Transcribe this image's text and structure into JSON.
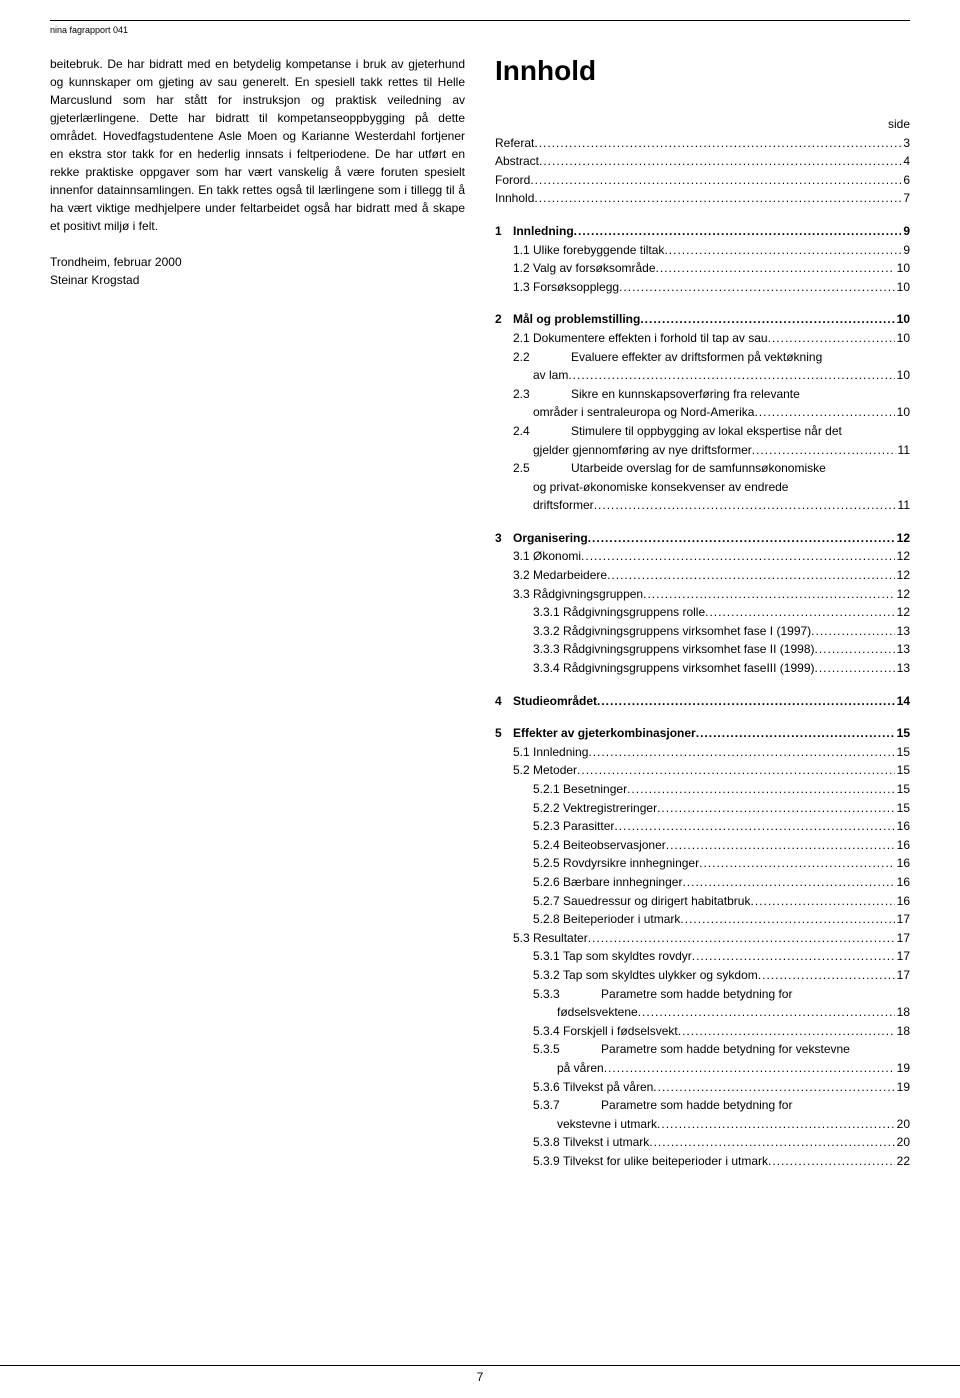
{
  "header": {
    "label": "nina fagrapport 041"
  },
  "left": {
    "paragraph": "beitebruk. De har bidratt med en betydelig kompetanse i bruk av gjeterhund og kunnskaper om gjeting av sau generelt. En spesiell takk rettes til Helle Marcuslund som har stått for instruksjon og praktisk veiledning av gjeterlærlingene. Dette har bidratt til kompetanseoppbygging på dette området. Hovedfagstudentene Asle Moen og Karianne Westerdahl fortjener en ekstra stor takk for en hederlig innsats i feltperiodene. De har utført en rekke praktiske oppgaver som har vært vanskelig å være foruten spesielt innenfor datainnsamlingen. En takk rettes også til lærlingene som i tillegg til å ha vært viktige medhjelpere under feltarbeidet også har bidratt med å skape et positivt miljø i felt.",
    "sign1": "Trondheim, februar 2000",
    "sign2": "Steinar Krogstad"
  },
  "right": {
    "title": "Innhold",
    "side_label": "side",
    "front": [
      {
        "label": "Referat",
        "page": "3"
      },
      {
        "label": "Abstract",
        "page": "4"
      },
      {
        "label": "Forord",
        "page": "6"
      },
      {
        "label": "Innhold",
        "page": "7"
      }
    ],
    "sections": [
      {
        "num": "1",
        "label": "Innledning",
        "page": "9",
        "bold": true,
        "children": [
          {
            "num": "1.1",
            "label": "Ulike forebyggende tiltak",
            "page": "9"
          },
          {
            "num": "1.2",
            "label": "Valg av forsøksområde",
            "page": "10"
          },
          {
            "num": "1.3",
            "label": "Forsøksopplegg",
            "page": "10"
          }
        ]
      },
      {
        "num": "2",
        "label": "Mål og problemstilling",
        "page": "10",
        "bold": true,
        "children": [
          {
            "num": "2.1",
            "label": "Dokumentere effekten i forhold til tap av sau",
            "page": "10"
          },
          {
            "num": "2.2",
            "label": "Evaluere effekter av driftsformen på vektøkning",
            "cont": "av lam",
            "page": "10"
          },
          {
            "num": "2.3",
            "label": "Sikre en kunnskapsoverføring fra relevante",
            "cont": "områder i sentraleuropa og Nord-Amerika",
            "page": "10"
          },
          {
            "num": "2.4",
            "label": "Stimulere til oppbygging av lokal ekspertise når det",
            "cont": "gjelder gjennomføring av nye driftsformer",
            "page": "11"
          },
          {
            "num": "2.5",
            "label": "Utarbeide overslag for de samfunnsøkonomiske",
            "cont": "og privat-økonomiske konsekvenser av endrede",
            "cont2": "driftsformer",
            "page": "11"
          }
        ]
      },
      {
        "num": "3",
        "label": "Organisering",
        "page": "12",
        "bold": true,
        "children": [
          {
            "num": "3.1",
            "label": "Økonomi",
            "page": "12"
          },
          {
            "num": "3.2",
            "label": "Medarbeidere",
            "page": "12"
          },
          {
            "num": "3.3",
            "label": "Rådgivningsgruppen",
            "page": "12"
          },
          {
            "num": "3.3.1",
            "label": "Rådgivningsgruppens rolle",
            "page": "12",
            "lvl": 3
          },
          {
            "num": "3.3.2",
            "label": "Rådgivningsgruppens virksomhet fase I (1997)",
            "page": "13",
            "lvl": 3
          },
          {
            "num": "3.3.3",
            "label": "Rådgivningsgruppens virksomhet fase II (1998)",
            "page": "13",
            "lvl": 3
          },
          {
            "num": "3.3.4",
            "label": "Rådgivningsgruppens virksomhet faseIII (1999)",
            "page": "13",
            "lvl": 3
          }
        ]
      },
      {
        "num": "4",
        "label": "Studieområdet",
        "page": "14",
        "bold": true,
        "children": []
      },
      {
        "num": "5",
        "label": "Effekter av gjeterkombinasjoner",
        "page": "15",
        "bold": true,
        "children": [
          {
            "num": "5.1",
            "label": "Innledning",
            "page": "15"
          },
          {
            "num": "5.2",
            "label": "Metoder",
            "page": "15"
          },
          {
            "num": "5.2.1",
            "label": "Besetninger",
            "page": "15",
            "lvl": 3
          },
          {
            "num": "5.2.2",
            "label": "Vektregistreringer",
            "page": "15",
            "lvl": 3
          },
          {
            "num": "5.2.3",
            "label": "Parasitter",
            "page": "16",
            "lvl": 3
          },
          {
            "num": "5.2.4",
            "label": "Beiteobservasjoner",
            "page": "16",
            "lvl": 3
          },
          {
            "num": "5.2.5",
            "label": "Rovdyrsikre innhegninger",
            "page": "16",
            "lvl": 3
          },
          {
            "num": "5.2.6",
            "label": "Bærbare innhegninger",
            "page": "16",
            "lvl": 3
          },
          {
            "num": "5.2.7",
            "label": "Sauedressur og dirigert habitatbruk",
            "page": "16",
            "lvl": 3
          },
          {
            "num": "5.2.8",
            "label": "Beiteperioder i utmark",
            "page": "17",
            "lvl": 3
          },
          {
            "num": "5.3",
            "label": "Resultater",
            "page": "17"
          },
          {
            "num": "5.3.1",
            "label": "Tap som skyldtes rovdyr",
            "page": "17",
            "lvl": 3
          },
          {
            "num": "5.3.2",
            "label": "Tap som skyldtes ulykker og sykdom",
            "page": "17",
            "lvl": 3
          },
          {
            "num": "5.3.3",
            "label": "Parametre som hadde betydning for",
            "cont": "fødselsvektene",
            "page": "18",
            "lvl": 3
          },
          {
            "num": "5.3.4",
            "label": "Forskjell i fødselsvekt",
            "page": "18",
            "lvl": 3
          },
          {
            "num": "5.3.5",
            "label": "Parametre som hadde betydning for vekstevne",
            "cont": "på våren",
            "page": "19",
            "lvl": 3
          },
          {
            "num": "5.3.6",
            "label": "Tilvekst på våren",
            "page": "19",
            "lvl": 3
          },
          {
            "num": "5.3.7",
            "label": "Parametre som hadde betydning for",
            "cont": "vekstevne i utmark",
            "page": "20",
            "lvl": 3
          },
          {
            "num": "5.3.8",
            "label": "Tilvekst i utmark",
            "page": "20",
            "lvl": 3
          },
          {
            "num": "5.3.9",
            "label": "Tilvekst for ulike beiteperioder i utmark",
            "page": "22",
            "lvl": 3
          }
        ]
      }
    ]
  },
  "footer": {
    "page": "7"
  }
}
